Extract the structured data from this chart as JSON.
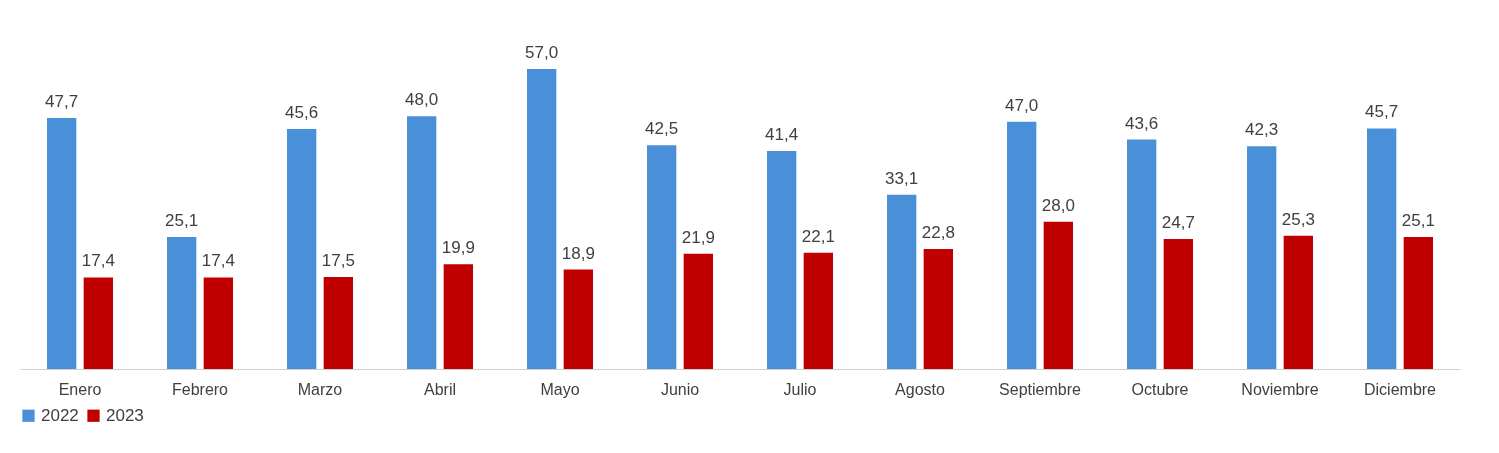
{
  "chart_data": {
    "type": "bar",
    "categories": [
      "Enero",
      "Febrero",
      "Marzo",
      "Abril",
      "Mayo",
      "Junio",
      "Julio",
      "Agosto",
      "Septiembre",
      "Octubre",
      "Noviembre",
      "Diciembre"
    ],
    "series": [
      {
        "name": "2022",
        "color": "#4a90d9",
        "values": [
          47.7,
          25.1,
          45.6,
          48.0,
          57.0,
          42.5,
          41.4,
          33.1,
          47.0,
          43.6,
          42.3,
          45.7
        ],
        "value_labels": [
          "47,7",
          "25,1",
          "45,6",
          "48,0",
          "57,0",
          "42,5",
          "41,4",
          "33,1",
          "47,0",
          "43,6",
          "42,3",
          "45,7"
        ]
      },
      {
        "name": "2023",
        "color": "#c00000",
        "values": [
          17.4,
          17.4,
          17.5,
          19.9,
          18.9,
          21.9,
          22.1,
          22.8,
          28.0,
          24.7,
          25.3,
          25.1
        ],
        "value_labels": [
          "17,4",
          "17,4",
          "17,5",
          "19,9",
          "18,9",
          "21,9",
          "22,1",
          "22,8",
          "28,0",
          "24,7",
          "25,3",
          "25,1"
        ]
      }
    ],
    "legend": "bottom",
    "grid": false
  }
}
